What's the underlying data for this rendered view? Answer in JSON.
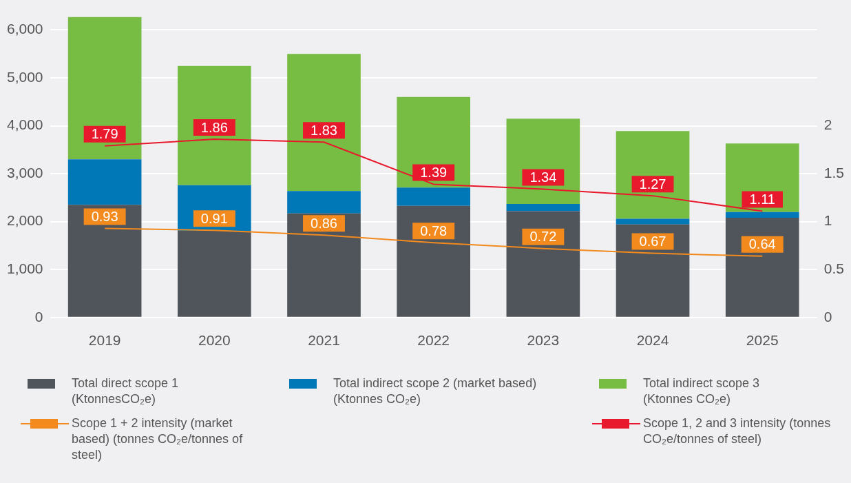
{
  "chart_data": {
    "type": "bar",
    "stacked": true,
    "categories": [
      "2019",
      "2020",
      "2021",
      "2022",
      "2023",
      "2024",
      "2025"
    ],
    "series": [
      {
        "name": "Total direct scope 1 (KtonnesCO₂e)",
        "color": "#50555c",
        "values": [
          2350,
          1810,
          2170,
          2330,
          2220,
          1940,
          2080
        ]
      },
      {
        "name": "Total indirect scope 2 (market based) (Ktonnes CO₂e)",
        "color": "#0077b6",
        "values": [
          950,
          950,
          470,
          380,
          150,
          120,
          120
        ]
      },
      {
        "name": "Total indirect scope 3 (Ktonnes CO₂e)",
        "color": "#77bd43",
        "values": [
          2970,
          2490,
          2860,
          1890,
          1780,
          1830,
          1430
        ]
      },
      {
        "name": "Scope 1 + 2 intensity (market based) (tonnes CO₂e/tonnes of steel)",
        "type": "line",
        "axis": "y2",
        "color": "#f28a1e",
        "values": [
          0.93,
          0.91,
          0.86,
          0.78,
          0.72,
          0.67,
          0.64
        ],
        "value_labels": [
          "0.93",
          "0.91",
          "0.86",
          "0.78",
          "0.72",
          "0.67",
          "0.64"
        ]
      },
      {
        "name": "Scope 1, 2 and 3 intensity (tonnes CO₂e/tonnes of steel)",
        "type": "line",
        "axis": "y2",
        "color": "#e8192c",
        "values": [
          1.79,
          1.86,
          1.83,
          1.39,
          1.34,
          1.27,
          1.11
        ],
        "value_labels": [
          "1.79",
          "1.86",
          "1.83",
          "1.39",
          "1.34",
          "1.27",
          "1.11"
        ]
      }
    ],
    "ylim": [
      0,
      6300
    ],
    "yticks": [
      {
        "value": 0,
        "label": "0"
      },
      {
        "value": 1000,
        "label": "1,000"
      },
      {
        "value": 2000,
        "label": "2,000"
      },
      {
        "value": 3000,
        "label": "3,000"
      },
      {
        "value": 4000,
        "label": "4,000"
      },
      {
        "value": 5000,
        "label": "5,000"
      },
      {
        "value": 6000,
        "label": "6,000"
      }
    ],
    "y2lim": [
      0,
      3.15
    ],
    "y2ticks": [
      0,
      0.5,
      1,
      1.5,
      2
    ],
    "grid": "y",
    "legend": "bottom",
    "line_style": "solid"
  }
}
